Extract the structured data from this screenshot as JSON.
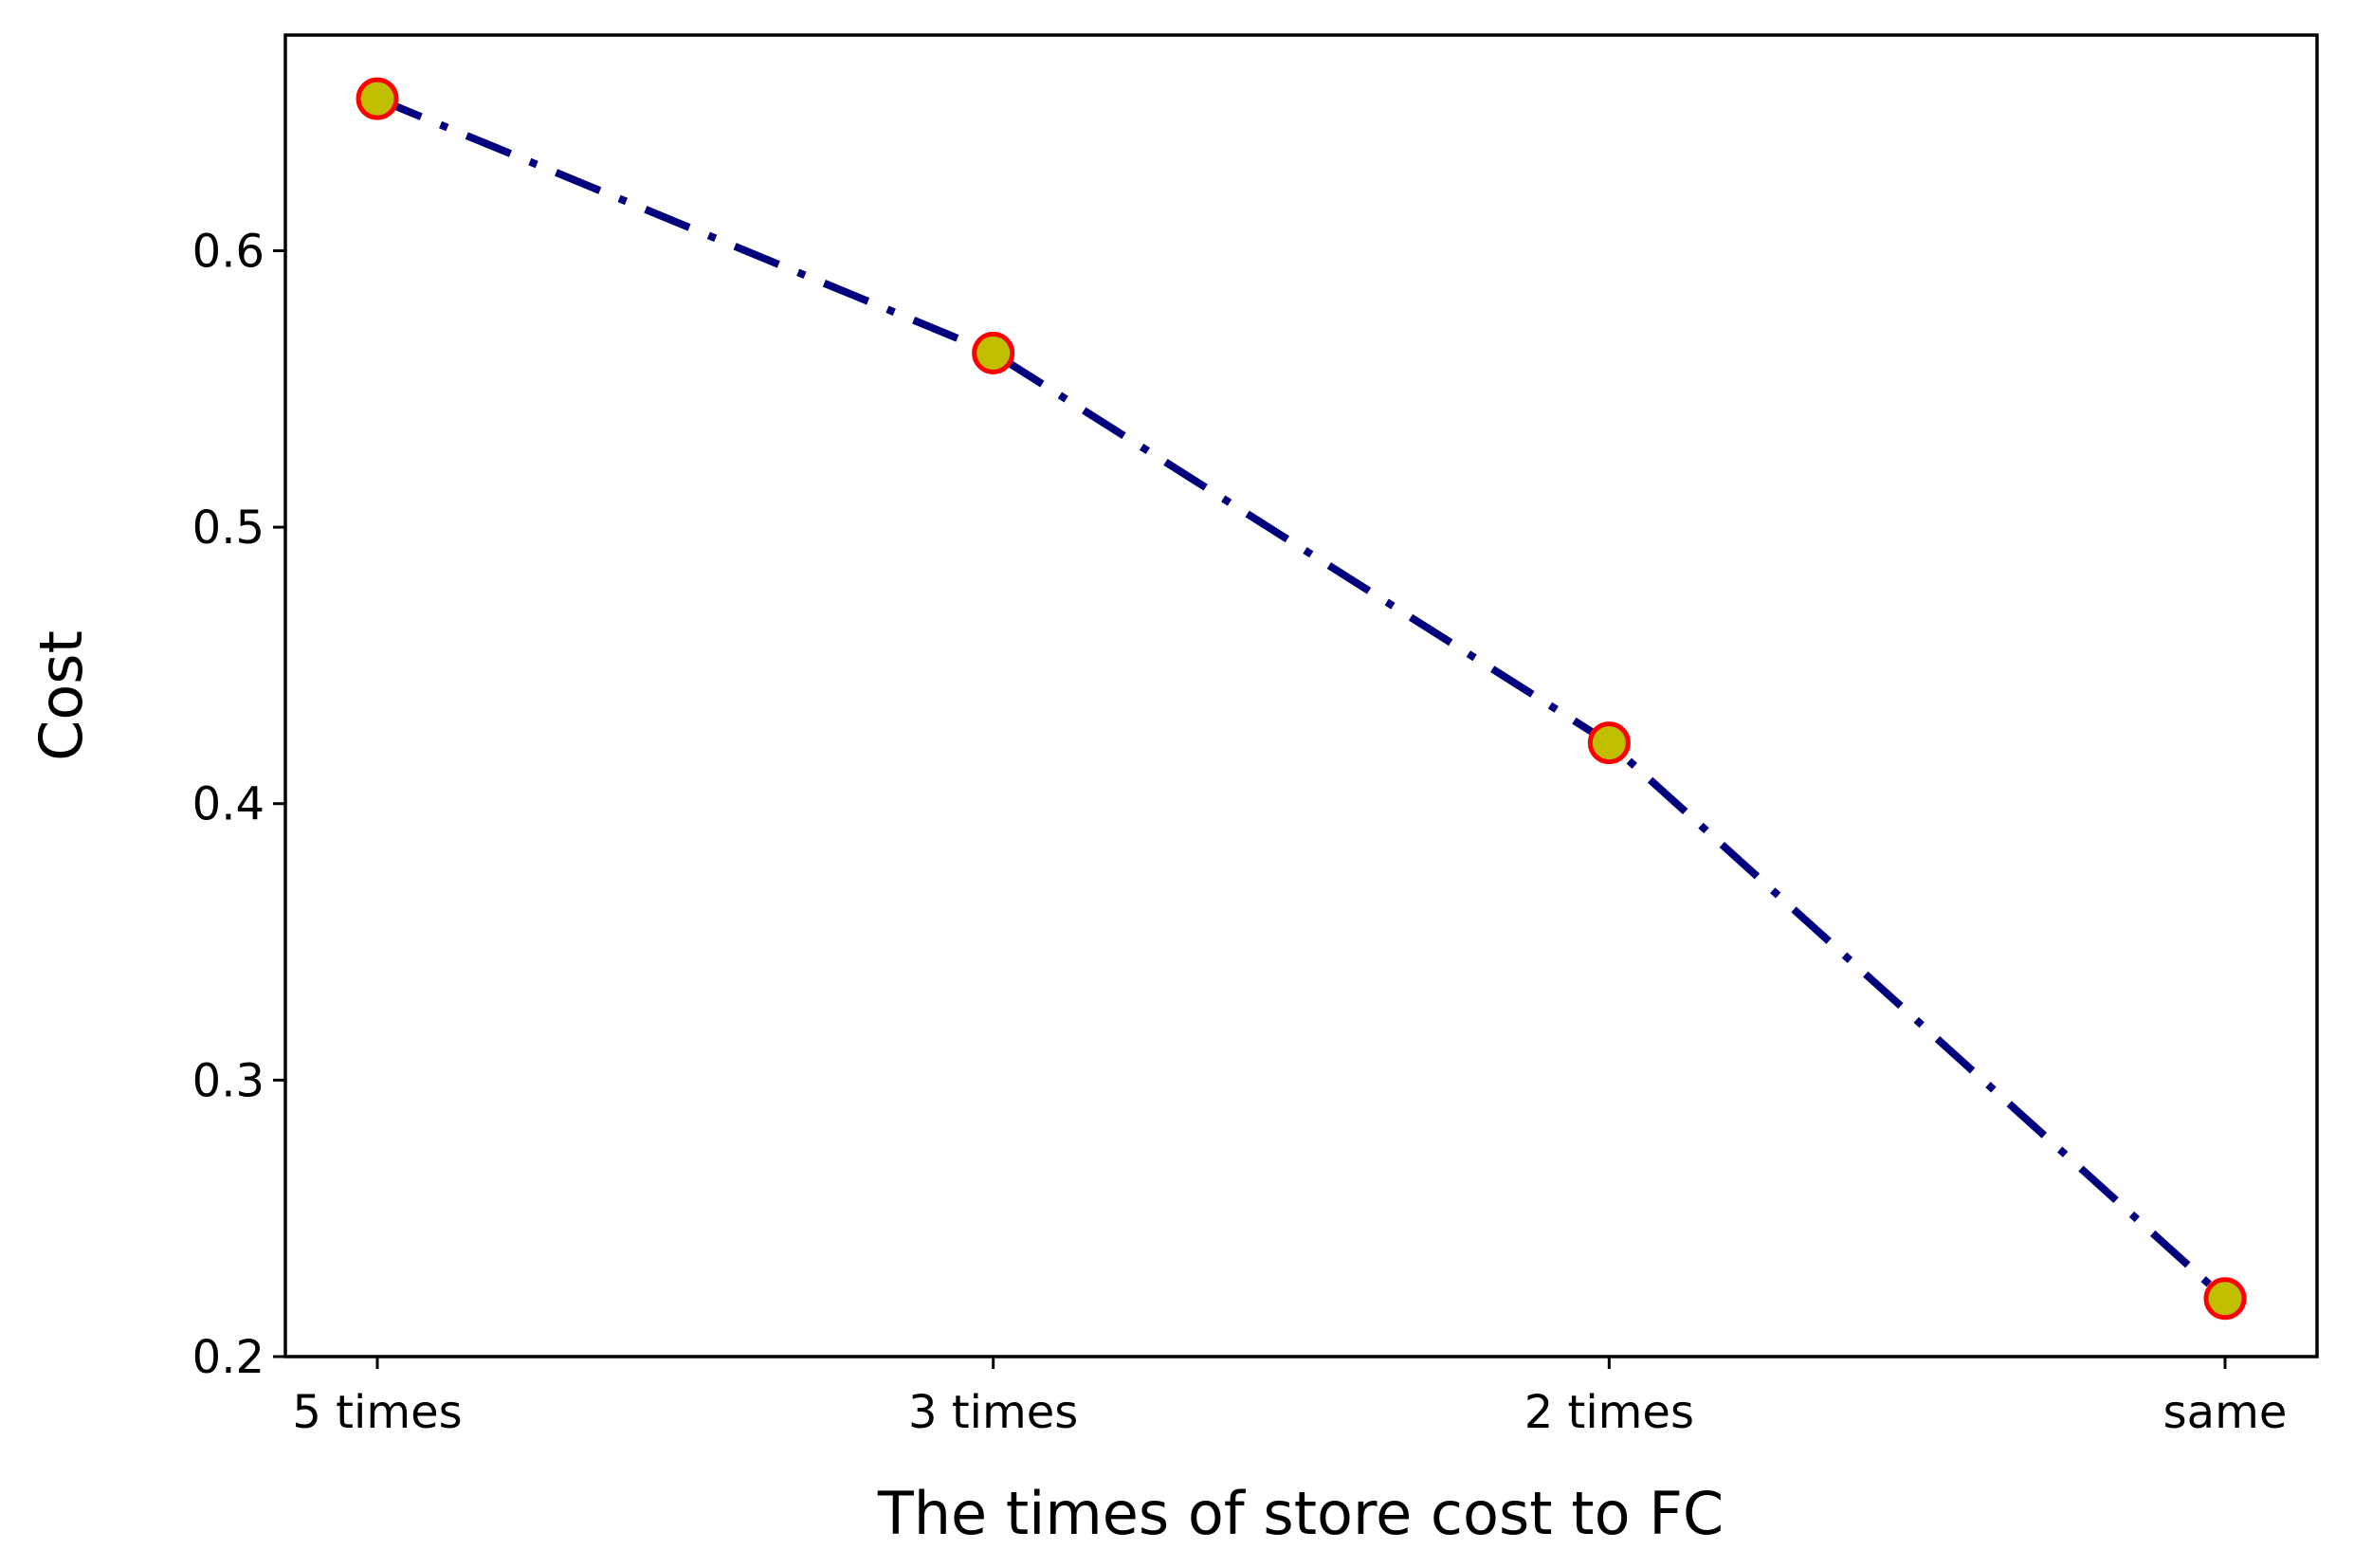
{
  "chart_data": {
    "type": "line",
    "categories": [
      "5 times",
      "3 times",
      "2 times",
      "same"
    ],
    "series": [
      {
        "values": [
          0.655,
          0.563,
          0.422,
          0.221
        ],
        "line_color": "#00007f",
        "line_style": "dash-dot",
        "marker_face_color": "#bfbf00",
        "marker_edge_color": "#ff0000"
      }
    ],
    "title": "",
    "xlabel": "The times of store cost to FC",
    "ylabel": "Cost",
    "ylim": [
      0.2,
      0.678
    ],
    "yticks": [
      0.2,
      0.3,
      0.4,
      0.5,
      0.6
    ],
    "ytick_labels": [
      "0.2",
      "0.3",
      "0.4",
      "0.5",
      "0.6"
    ],
    "grid": false,
    "legend": "none"
  }
}
